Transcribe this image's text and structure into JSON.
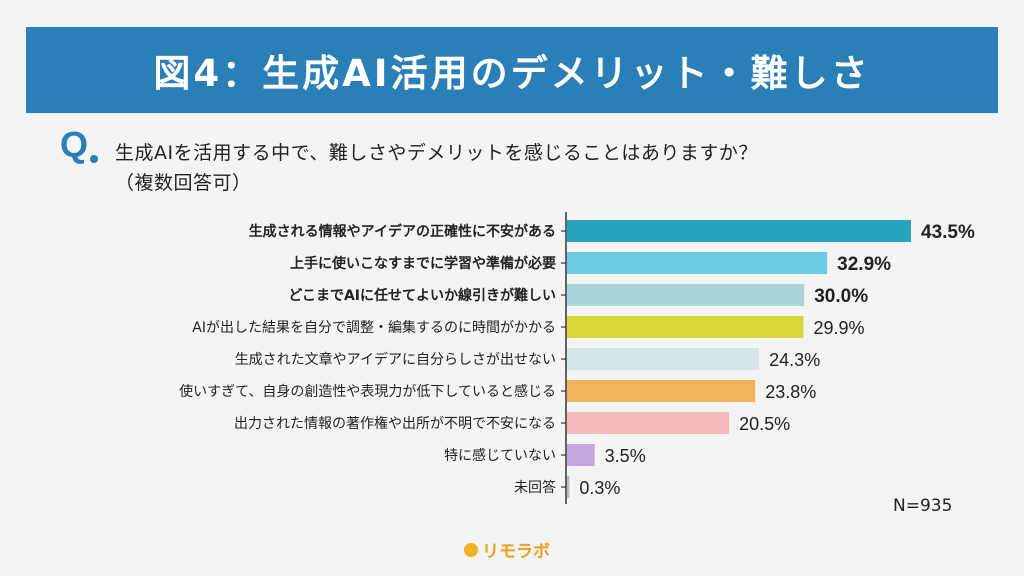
{
  "title": "図4：生成AI活用のデメリット・難しさ",
  "question": {
    "mark": "Q",
    "line1": "生成AIを活用する中で、難しさやデメリットを感じることはありますか？",
    "line2": "（複数回答可）"
  },
  "sample_size": "N=935",
  "logo": "リモラボ",
  "chart_data": {
    "type": "bar",
    "orientation": "horizontal",
    "categories": [
      "生成される情報やアイデアの正確性に不安がある",
      "上手に使いこなすまでに学習や準備が必要",
      "どこまでAIに任せてよいか線引きが難しい",
      "AIが出した結果を自分で調整・編集するのに時間がかかる",
      "生成された文章やアイデアに自分らしさが出せない",
      "使いすぎて、自身の創造性や表現力が低下していると感じる",
      "出力された情報の著作権や出所が不明で不安になる",
      "特に感じていない",
      "未回答"
    ],
    "values": [
      43.5,
      32.9,
      30.0,
      29.9,
      24.3,
      23.8,
      20.5,
      3.5,
      0.3
    ],
    "value_labels": [
      "43.5%",
      "32.9%",
      "30.0%",
      "29.9%",
      "24.3%",
      "23.8%",
      "20.5%",
      "3.5%",
      "0.3%"
    ],
    "colors": [
      "#2aa5c0",
      "#6ccbe0",
      "#a9d6dd",
      "#d8d838",
      "#d6e5ea",
      "#f3b25c",
      "#f6bcbc",
      "#c7a6e0",
      "#bdbdbd"
    ],
    "bold_top": 3,
    "xlim": [
      0,
      43.5
    ]
  }
}
